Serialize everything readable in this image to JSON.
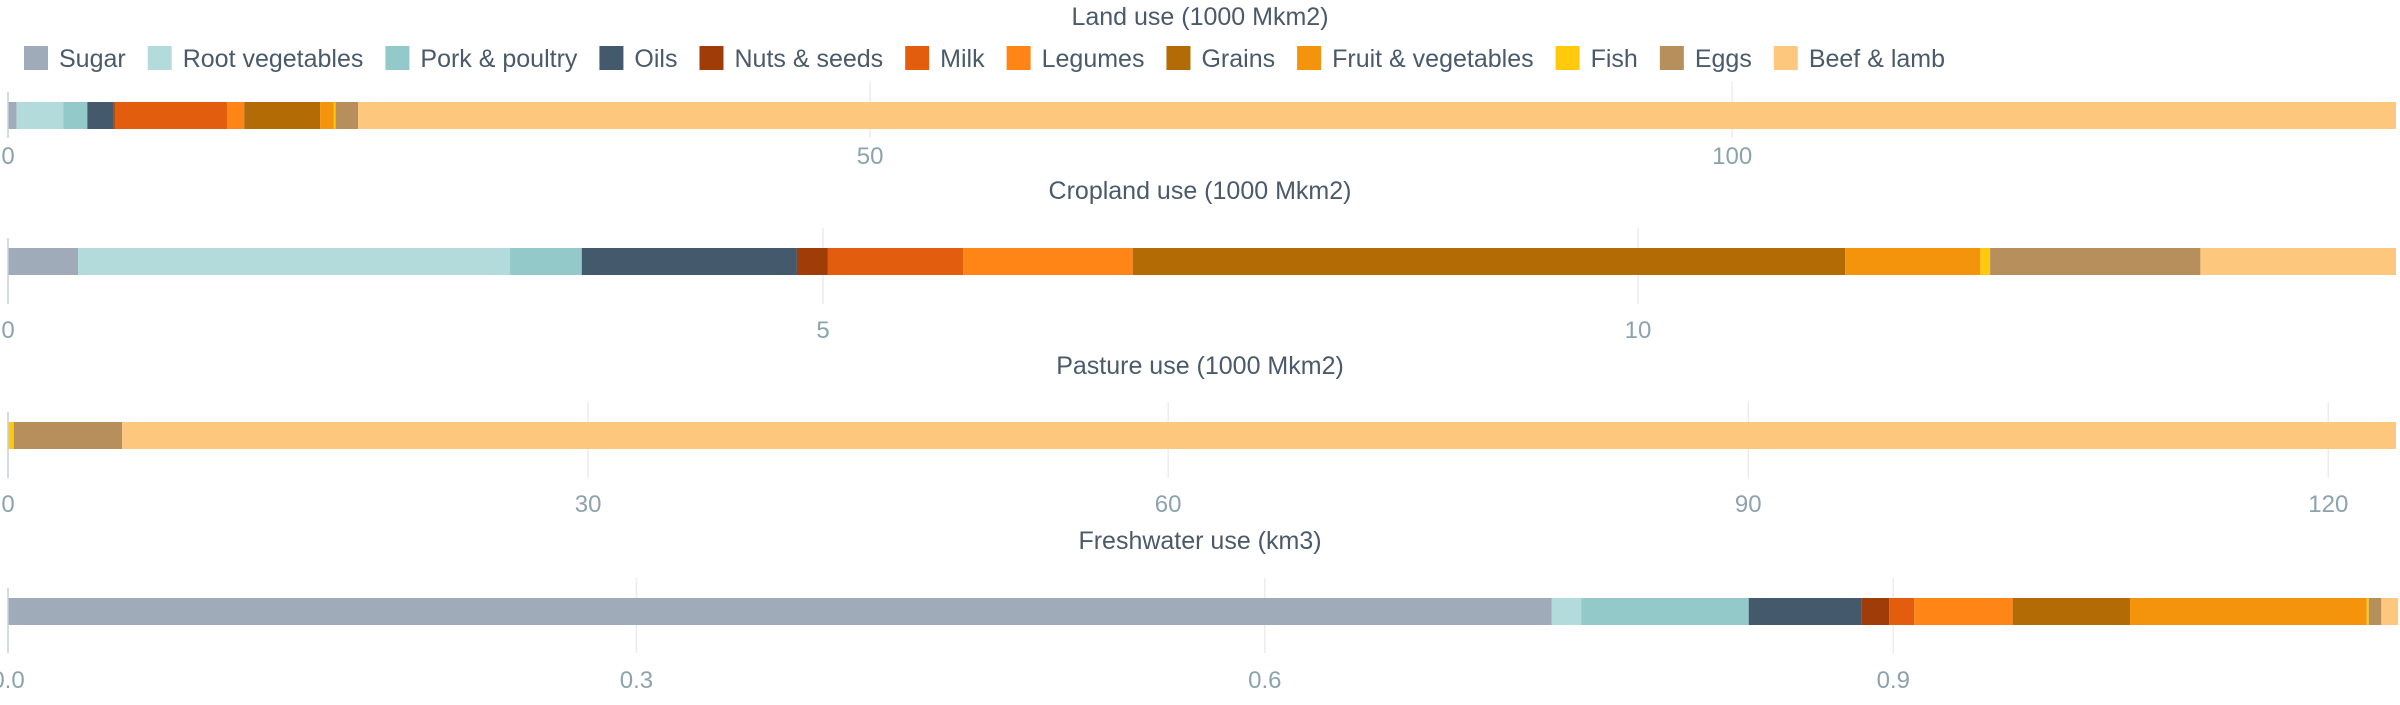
{
  "legend": {
    "position": "top-left",
    "items": [
      {
        "name": "Sugar",
        "color": "#9fabb9"
      },
      {
        "name": "Root vegetables",
        "color": "#b4dbdb"
      },
      {
        "name": "Pork & poultry",
        "color": "#93c9c9"
      },
      {
        "name": "Oils",
        "color": "#45596d"
      },
      {
        "name": "Nuts & seeds",
        "color": "#a03c08"
      },
      {
        "name": "Milk",
        "color": "#e25e0e"
      },
      {
        "name": "Legumes",
        "color": "#ff8516"
      },
      {
        "name": "Grains",
        "color": "#b26b05"
      },
      {
        "name": "Fruit & vegetables",
        "color": "#f4930c"
      },
      {
        "name": "Fish",
        "color": "#ffc90c"
      },
      {
        "name": "Eggs",
        "color": "#b68f5c"
      },
      {
        "name": "Beef & lamb",
        "color": "#fdc87e"
      }
    ]
  },
  "chart_data": [
    {
      "type": "bar",
      "orientation": "horizontal-stacked",
      "title": "Land use (1000 Mkm2)",
      "xlim": [
        0,
        138.5
      ],
      "ticks": [
        0,
        50,
        100
      ],
      "tick_labels": [
        "0",
        "50",
        "100"
      ],
      "grid": true,
      "series": [
        {
          "name": "Sugar",
          "value": 0.5
        },
        {
          "name": "Root vegetables",
          "value": 2.7
        },
        {
          "name": "Pork & poultry",
          "value": 1.4
        },
        {
          "name": "Oils",
          "value": 1.5
        },
        {
          "name": "Nuts & seeds",
          "value": 0.1
        },
        {
          "name": "Milk",
          "value": 6.5
        },
        {
          "name": "Legumes",
          "value": 1.0
        },
        {
          "name": "Grains",
          "value": 4.4
        },
        {
          "name": "Fruit & vegetables",
          "value": 0.8
        },
        {
          "name": "Fish",
          "value": 0.1
        },
        {
          "name": "Eggs",
          "value": 1.3
        },
        {
          "name": "Beef & lamb",
          "value": 118.2
        }
      ]
    },
    {
      "type": "bar",
      "orientation": "horizontal-stacked",
      "title": "Cropland use (1000 Mkm2)",
      "xlim": [
        0,
        14.65
      ],
      "ticks": [
        0,
        5,
        10
      ],
      "tick_labels": [
        "0",
        "5",
        "10"
      ],
      "grid": true,
      "series": [
        {
          "name": "Sugar",
          "value": 0.43
        },
        {
          "name": "Root vegetables",
          "value": 2.65
        },
        {
          "name": "Pork & poultry",
          "value": 0.44
        },
        {
          "name": "Oils",
          "value": 1.32
        },
        {
          "name": "Nuts & seeds",
          "value": 0.19
        },
        {
          "name": "Milk",
          "value": 0.83
        },
        {
          "name": "Legumes",
          "value": 1.04
        },
        {
          "name": "Grains",
          "value": 4.37
        },
        {
          "name": "Fruit & vegetables",
          "value": 0.83
        },
        {
          "name": "Fish",
          "value": 0.06
        },
        {
          "name": "Eggs",
          "value": 1.29
        },
        {
          "name": "Beef & lamb",
          "value": 1.2
        }
      ]
    },
    {
      "type": "bar",
      "orientation": "horizontal-stacked",
      "title": "Pasture use (1000 Mkm2)",
      "xlim": [
        0,
        123.5
      ],
      "ticks": [
        0,
        30,
        60,
        90,
        120
      ],
      "tick_labels": [
        "0",
        "30",
        "60",
        "90",
        "120"
      ],
      "grid": true,
      "series": [
        {
          "name": "Fish",
          "value": 0.3
        },
        {
          "name": "Eggs",
          "value": 5.6
        },
        {
          "name": "Beef & lamb",
          "value": 117.6
        }
      ]
    },
    {
      "type": "bar",
      "orientation": "horizontal-stacked",
      "title": "Freshwater use (km3)",
      "xlim": [
        0,
        1.14
      ],
      "ticks": [
        0,
        0.3,
        0.6,
        0.9
      ],
      "tick_labels": [
        "0.0",
        "0.3",
        "0.6",
        "0.9"
      ],
      "grid": true,
      "series": [
        {
          "name": "Sugar",
          "value": 0.737
        },
        {
          "name": "Root vegetables",
          "value": 0.014
        },
        {
          "name": "Pork & poultry",
          "value": 0.08
        },
        {
          "name": "Oils",
          "value": 0.054
        },
        {
          "name": "Nuts & seeds",
          "value": 0.013
        },
        {
          "name": "Milk",
          "value": 0.012
        },
        {
          "name": "Legumes",
          "value": 0.047
        },
        {
          "name": "Grains",
          "value": 0.056
        },
        {
          "name": "Fruit & vegetables",
          "value": 0.113
        },
        {
          "name": "Fish",
          "value": 0.001
        },
        {
          "name": "Eggs",
          "value": 0.006
        },
        {
          "name": "Beef & lamb",
          "value": 0.008
        }
      ]
    }
  ]
}
